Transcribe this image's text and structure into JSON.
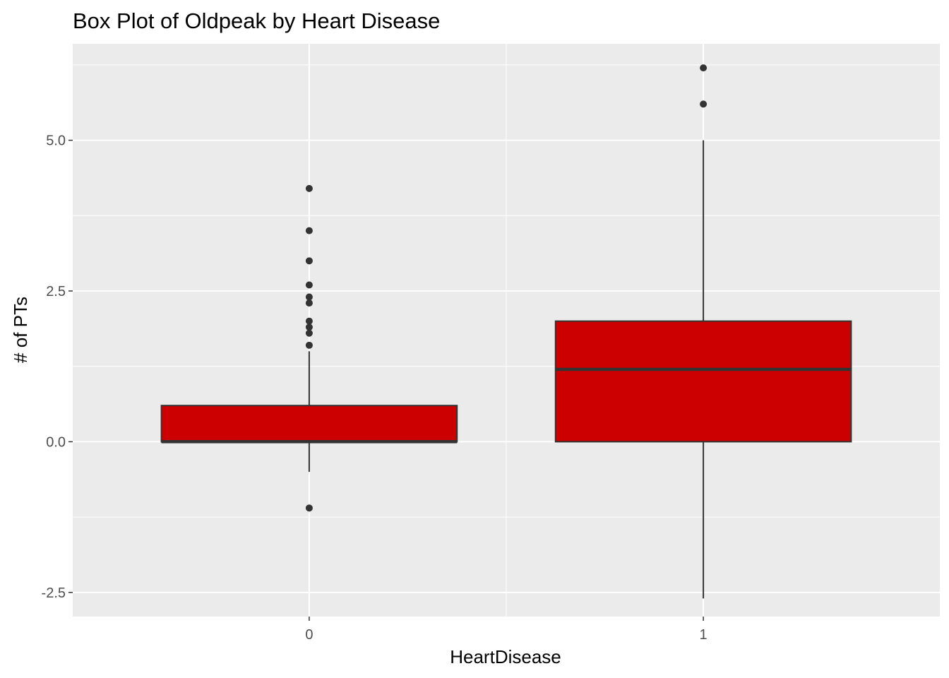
{
  "chart_data": {
    "type": "box",
    "title": "Box Plot of Oldpeak by Heart Disease",
    "xlabel": "HeartDisease",
    "ylabel": "# of PTs",
    "categories": [
      "0",
      "1"
    ],
    "yticks": [
      -2.5,
      0.0,
      2.5,
      5.0
    ],
    "ytick_labels": [
      "-2.5",
      "0.0",
      "2.5",
      "5.0"
    ],
    "ylim": [
      -2.9,
      6.6
    ],
    "grid": true,
    "legend": "none",
    "fill_color": "#CC0000",
    "line_color": "#333333",
    "panel_color": "#EBEBEB",
    "boxes": [
      {
        "category": "0",
        "lower_whisker": -0.5,
        "q1": 0.0,
        "median": 0.0,
        "q3": 0.6,
        "upper_whisker": 1.5,
        "outliers": [
          4.2,
          3.5,
          3.0,
          2.6,
          2.4,
          2.3,
          2.0,
          1.9,
          1.8,
          1.6,
          -1.1
        ]
      },
      {
        "category": "1",
        "lower_whisker": -2.6,
        "q1": 0.0,
        "median": 1.2,
        "q3": 2.0,
        "upper_whisker": 5.0,
        "outliers": [
          6.2,
          5.6
        ]
      }
    ]
  }
}
